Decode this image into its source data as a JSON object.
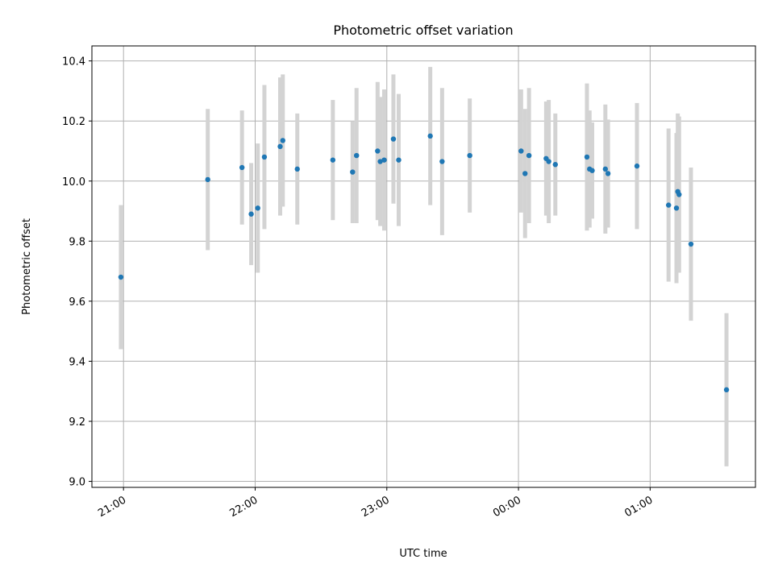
{
  "chart_data": {
    "type": "scatter",
    "title": "Photometric offset variation",
    "xlabel": "UTC time",
    "ylabel": "Photometric offset",
    "x_unit": "hours since 21:00 UTC (matplotlib date axis)",
    "xlim": [
      -0.24,
      4.8
    ],
    "ylim": [
      8.98,
      10.45
    ],
    "x_ticks": [
      {
        "value": 0,
        "label": "21:00"
      },
      {
        "value": 1,
        "label": "22:00"
      },
      {
        "value": 2,
        "label": "23:00"
      },
      {
        "value": 3,
        "label": "00:00"
      },
      {
        "value": 4,
        "label": "01:00"
      }
    ],
    "y_ticks": [
      {
        "value": 9.0,
        "label": "9.0"
      },
      {
        "value": 9.2,
        "label": "9.2"
      },
      {
        "value": 9.4,
        "label": "9.4"
      },
      {
        "value": 9.6,
        "label": "9.6"
      },
      {
        "value": 9.8,
        "label": "9.8"
      },
      {
        "value": 10.0,
        "label": "10.0"
      },
      {
        "value": 10.2,
        "label": "10.2"
      },
      {
        "value": 10.4,
        "label": "10.4"
      }
    ],
    "grid": true,
    "point_color": "#1f77b4",
    "errorbar_color": "#d3d3d3",
    "points": [
      {
        "x": -0.02,
        "y": 9.68,
        "yerr": 0.24
      },
      {
        "x": 0.64,
        "y": 10.005,
        "yerr": 0.235
      },
      {
        "x": 0.9,
        "y": 10.045,
        "yerr": 0.19
      },
      {
        "x": 0.97,
        "y": 9.89,
        "yerr": 0.17
      },
      {
        "x": 1.02,
        "y": 9.91,
        "yerr": 0.215
      },
      {
        "x": 1.07,
        "y": 10.08,
        "yerr": 0.24
      },
      {
        "x": 1.19,
        "y": 10.115,
        "yerr": 0.23
      },
      {
        "x": 1.21,
        "y": 10.135,
        "yerr": 0.22
      },
      {
        "x": 1.32,
        "y": 10.04,
        "yerr": 0.185
      },
      {
        "x": 1.59,
        "y": 10.07,
        "yerr": 0.2
      },
      {
        "x": 1.74,
        "y": 10.03,
        "yerr": 0.17
      },
      {
        "x": 1.77,
        "y": 10.085,
        "yerr": 0.225
      },
      {
        "x": 1.93,
        "y": 10.1,
        "yerr": 0.23
      },
      {
        "x": 1.95,
        "y": 10.065,
        "yerr": 0.215
      },
      {
        "x": 1.98,
        "y": 10.07,
        "yerr": 0.235
      },
      {
        "x": 2.05,
        "y": 10.14,
        "yerr": 0.215
      },
      {
        "x": 2.09,
        "y": 10.07,
        "yerr": 0.22
      },
      {
        "x": 2.33,
        "y": 10.15,
        "yerr": 0.23
      },
      {
        "x": 2.42,
        "y": 10.065,
        "yerr": 0.245
      },
      {
        "x": 2.63,
        "y": 10.085,
        "yerr": 0.19
      },
      {
        "x": 3.02,
        "y": 10.1,
        "yerr": 0.205
      },
      {
        "x": 3.05,
        "y": 10.025,
        "yerr": 0.215
      },
      {
        "x": 3.08,
        "y": 10.085,
        "yerr": 0.225
      },
      {
        "x": 3.21,
        "y": 10.075,
        "yerr": 0.19
      },
      {
        "x": 3.23,
        "y": 10.065,
        "yerr": 0.205
      },
      {
        "x": 3.28,
        "y": 10.055,
        "yerr": 0.17
      },
      {
        "x": 3.52,
        "y": 10.08,
        "yerr": 0.245
      },
      {
        "x": 3.54,
        "y": 10.04,
        "yerr": 0.195
      },
      {
        "x": 3.56,
        "y": 10.035,
        "yerr": 0.16
      },
      {
        "x": 3.66,
        "y": 10.04,
        "yerr": 0.215
      },
      {
        "x": 3.68,
        "y": 10.025,
        "yerr": 0.18
      },
      {
        "x": 3.9,
        "y": 10.05,
        "yerr": 0.21
      },
      {
        "x": 4.14,
        "y": 9.92,
        "yerr": 0.255
      },
      {
        "x": 4.2,
        "y": 9.91,
        "yerr": 0.25
      },
      {
        "x": 4.21,
        "y": 9.965,
        "yerr": 0.26
      },
      {
        "x": 4.22,
        "y": 9.955,
        "yerr": 0.26
      },
      {
        "x": 4.31,
        "y": 9.79,
        "yerr": 0.255
      },
      {
        "x": 4.58,
        "y": 9.305,
        "yerr": 0.255
      }
    ]
  }
}
